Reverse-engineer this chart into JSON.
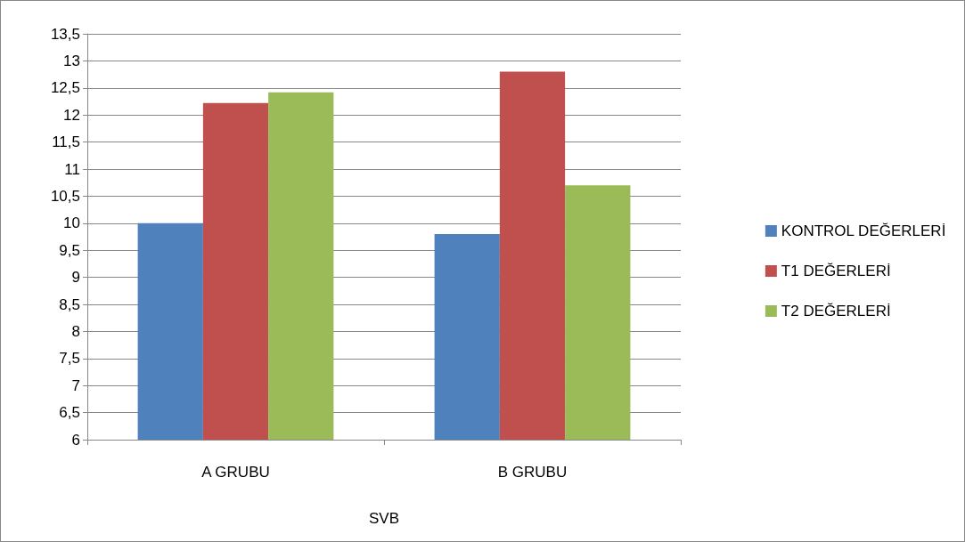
{
  "chart_data": {
    "type": "bar",
    "xlabel": "SVB",
    "categories": [
      "A GRUBU",
      "B GRUBU"
    ],
    "series": [
      {
        "name": "KONTROL DEĞERLERİ",
        "color": "#4f81bd",
        "values": [
          10,
          9.8
        ]
      },
      {
        "name": "T1 DEĞERLERİ",
        "color": "#c0504d",
        "values": [
          12.22,
          12.8
        ]
      },
      {
        "name": "T2 DEĞERLERİ",
        "color": "#9bbb59",
        "values": [
          12.42,
          10.7
        ]
      }
    ],
    "ylim": [
      6,
      13.5
    ],
    "yticks": [
      6,
      {
        "value": 6.5,
        "label": "6,5"
      },
      7,
      {
        "value": 7.5,
        "label": "7,5"
      },
      8,
      {
        "value": 8.5,
        "label": "8,5"
      },
      9,
      {
        "value": 9.5,
        "label": "9,5"
      },
      10,
      {
        "value": 10.5,
        "label": "10,5"
      },
      11,
      {
        "value": 11.5,
        "label": "11,5"
      },
      12,
      {
        "value": 12.5,
        "label": "12,5"
      },
      13,
      {
        "value": 13.5,
        "label": "13,5"
      }
    ],
    "grid": "y",
    "legend": "right"
  }
}
